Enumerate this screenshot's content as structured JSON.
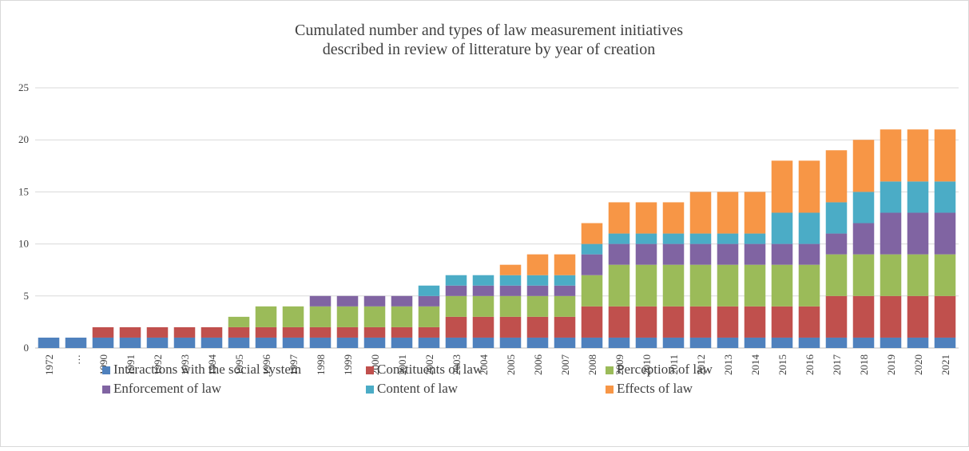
{
  "chart_data": {
    "type": "stacked_bar",
    "title": [
      "Cumulated number and types of law measurement initiatives",
      "described in review of litterature by year of creation"
    ],
    "categories": [
      "1972",
      "…",
      "1990",
      "1991",
      "1992",
      "1993",
      "1994",
      "1995",
      "1996",
      "1997",
      "1998",
      "1999",
      "2000",
      "2001",
      "2002",
      "2003",
      "2004",
      "2005",
      "2006",
      "2007",
      "2008",
      "2009",
      "2010",
      "2011",
      "2012",
      "2013",
      "2014",
      "2015",
      "2016",
      "2017",
      "2018",
      "2019",
      "2020",
      "2021"
    ],
    "series": [
      {
        "name": "Interactions with the social system",
        "color": "#4f81bd",
        "values": [
          1,
          1,
          1,
          1,
          1,
          1,
          1,
          1,
          1,
          1,
          1,
          1,
          1,
          1,
          1,
          1,
          1,
          1,
          1,
          1,
          1,
          1,
          1,
          1,
          1,
          1,
          1,
          1,
          1,
          1,
          1,
          1,
          1,
          1
        ]
      },
      {
        "name": "Constituents of law",
        "color": "#c0504d",
        "values": [
          0,
          0,
          1,
          1,
          1,
          1,
          1,
          1,
          1,
          1,
          1,
          1,
          1,
          1,
          1,
          2,
          2,
          2,
          2,
          2,
          3,
          3,
          3,
          3,
          3,
          3,
          3,
          3,
          3,
          4,
          4,
          4,
          4,
          4
        ]
      },
      {
        "name": "Perception of law",
        "color": "#9bbb59",
        "values": [
          0,
          0,
          0,
          0,
          0,
          0,
          0,
          1,
          2,
          2,
          2,
          2,
          2,
          2,
          2,
          2,
          2,
          2,
          2,
          2,
          3,
          4,
          4,
          4,
          4,
          4,
          4,
          4,
          4,
          4,
          4,
          4,
          4,
          4
        ]
      },
      {
        "name": "Enforcement of law",
        "color": "#8064a2",
        "values": [
          0,
          0,
          0,
          0,
          0,
          0,
          0,
          0,
          0,
          0,
          1,
          1,
          1,
          1,
          1,
          1,
          1,
          1,
          1,
          1,
          2,
          2,
          2,
          2,
          2,
          2,
          2,
          2,
          2,
          2,
          3,
          4,
          4,
          4
        ]
      },
      {
        "name": "Content of law",
        "color": "#4bacc6",
        "values": [
          0,
          0,
          0,
          0,
          0,
          0,
          0,
          0,
          0,
          0,
          0,
          0,
          0,
          0,
          1,
          1,
          1,
          1,
          1,
          1,
          1,
          1,
          1,
          1,
          1,
          1,
          1,
          3,
          3,
          3,
          3,
          3,
          3,
          3
        ]
      },
      {
        "name": "Effects of law",
        "color": "#f79646",
        "values": [
          0,
          0,
          0,
          0,
          0,
          0,
          0,
          0,
          0,
          0,
          0,
          0,
          0,
          0,
          0,
          0,
          0,
          1,
          2,
          2,
          2,
          3,
          3,
          3,
          4,
          4,
          4,
          5,
          5,
          5,
          5,
          5,
          5,
          5
        ]
      }
    ],
    "ylim": [
      0,
      25
    ],
    "yticks": [
      0,
      5,
      10,
      15,
      20,
      25
    ],
    "grid": true
  }
}
